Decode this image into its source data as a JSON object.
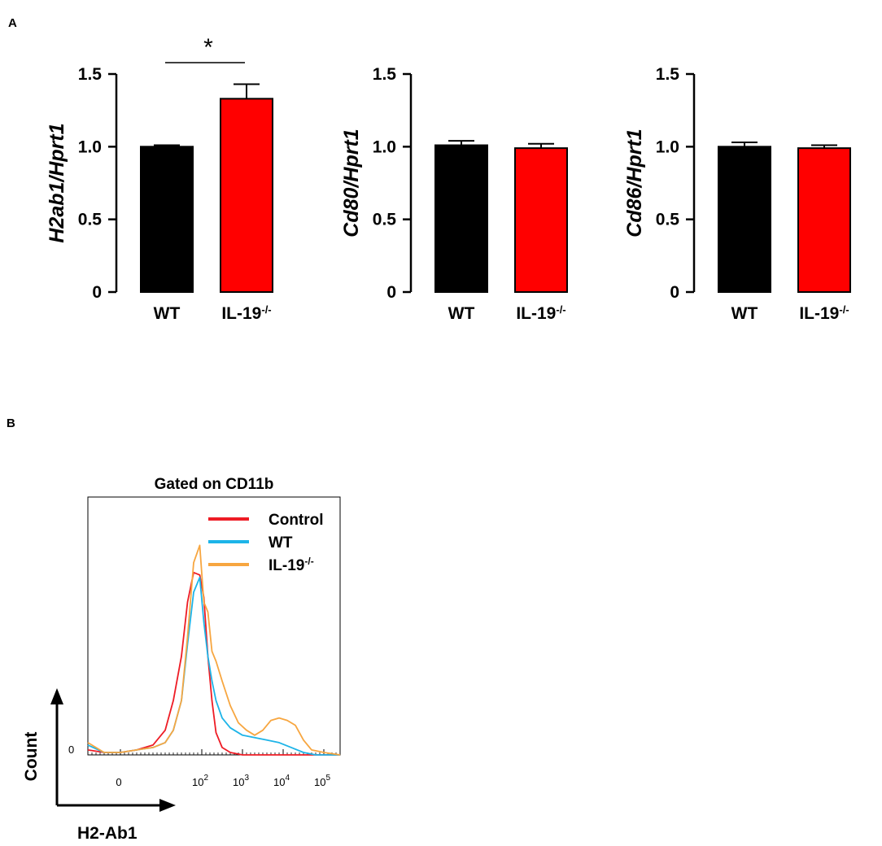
{
  "panel_labels": {
    "a": "A",
    "b": "B"
  },
  "chart_data": [
    {
      "type": "bar",
      "ylabel": "H2ab1/Hprt1",
      "categories": [
        {
          "main": "WT",
          "sup": ""
        },
        {
          "main": "IL-19",
          "sup": "-/-"
        }
      ],
      "values": [
        1.0,
        1.33
      ],
      "errors": [
        0.01,
        0.1
      ],
      "colors": [
        "#000000",
        "#ff0000"
      ],
      "ylim": [
        0,
        1.5
      ],
      "yticks": [
        "0",
        "0.5",
        "1.0",
        "1.5"
      ],
      "significance": "*"
    },
    {
      "type": "bar",
      "ylabel": "Cd80/Hprt1",
      "categories": [
        {
          "main": "WT",
          "sup": ""
        },
        {
          "main": "IL-19",
          "sup": "-/-"
        }
      ],
      "values": [
        1.01,
        0.99
      ],
      "errors": [
        0.03,
        0.03
      ],
      "colors": [
        "#000000",
        "#ff0000"
      ],
      "ylim": [
        0,
        1.5
      ],
      "yticks": [
        "0",
        "0.5",
        "1.0",
        "1.5"
      ],
      "significance": ""
    },
    {
      "type": "bar",
      "ylabel": "Cd86/Hprt1",
      "categories": [
        {
          "main": "WT",
          "sup": ""
        },
        {
          "main": "IL-19",
          "sup": "-/-"
        }
      ],
      "values": [
        1.0,
        0.99
      ],
      "errors": [
        0.03,
        0.02
      ],
      "colors": [
        "#000000",
        "#ff0000"
      ],
      "ylim": [
        0,
        1.5
      ],
      "yticks": [
        "0",
        "0.5",
        "1.0",
        "1.5"
      ],
      "significance": ""
    },
    {
      "type": "line",
      "title": "Gated on CD11b",
      "xlabel": "H2-Ab1",
      "ylabel": "Count",
      "y_zero_label": "0",
      "xticks": [
        {
          "base": "0",
          "exp": ""
        },
        {
          "base": "10",
          "exp": "2"
        },
        {
          "base": "10",
          "exp": "3"
        },
        {
          "base": "10",
          "exp": "4"
        },
        {
          "base": "10",
          "exp": "5"
        }
      ],
      "x_decades": [
        0,
        2,
        3,
        4,
        5
      ],
      "xlim": [
        -0.8,
        5.4
      ],
      "ylim": [
        0,
        100
      ],
      "series": [
        {
          "name": "Control",
          "sup": "",
          "color": "#ee1c25",
          "x": [
            -0.8,
            -0.4,
            0.0,
            0.4,
            0.8,
            1.1,
            1.3,
            1.5,
            1.65,
            1.8,
            1.95,
            2.05,
            2.15,
            2.25,
            2.35,
            2.5,
            2.7,
            3.0,
            3.5,
            4.0,
            4.5,
            5.0,
            5.4
          ],
          "y": [
            2,
            1,
            1,
            2,
            4,
            10,
            22,
            40,
            62,
            74,
            73,
            64,
            40,
            22,
            9,
            3,
            1,
            0,
            0,
            0,
            0,
            0,
            0
          ]
        },
        {
          "name": "WT",
          "sup": "",
          "color": "#1db4e8",
          "x": [
            -0.8,
            -0.4,
            0.0,
            0.4,
            0.8,
            1.1,
            1.3,
            1.5,
            1.65,
            1.8,
            1.95,
            2.05,
            2.15,
            2.25,
            2.35,
            2.5,
            2.7,
            3.0,
            3.3,
            3.6,
            3.9,
            4.2,
            4.5,
            4.8,
            5.1,
            5.4
          ],
          "y": [
            4,
            1,
            1,
            2,
            3,
            5,
            10,
            22,
            45,
            66,
            72,
            54,
            40,
            30,
            22,
            15,
            11,
            8,
            7,
            6,
            5,
            3,
            1,
            0,
            0,
            0
          ]
        },
        {
          "name": "IL-19",
          "sup": "-/-",
          "color": "#f7a640",
          "x": [
            -0.8,
            -0.4,
            0.0,
            0.4,
            0.8,
            1.1,
            1.3,
            1.5,
            1.65,
            1.8,
            1.95,
            2.05,
            2.15,
            2.25,
            2.35,
            2.5,
            2.7,
            2.9,
            3.1,
            3.3,
            3.5,
            3.7,
            3.9,
            4.1,
            4.3,
            4.5,
            4.7,
            5.0,
            5.4
          ],
          "y": [
            5,
            1,
            1,
            2,
            3,
            5,
            10,
            22,
            48,
            78,
            85,
            62,
            58,
            42,
            38,
            30,
            20,
            13,
            10,
            8,
            10,
            14,
            15,
            14,
            12,
            6,
            2,
            1,
            0
          ]
        }
      ]
    }
  ]
}
